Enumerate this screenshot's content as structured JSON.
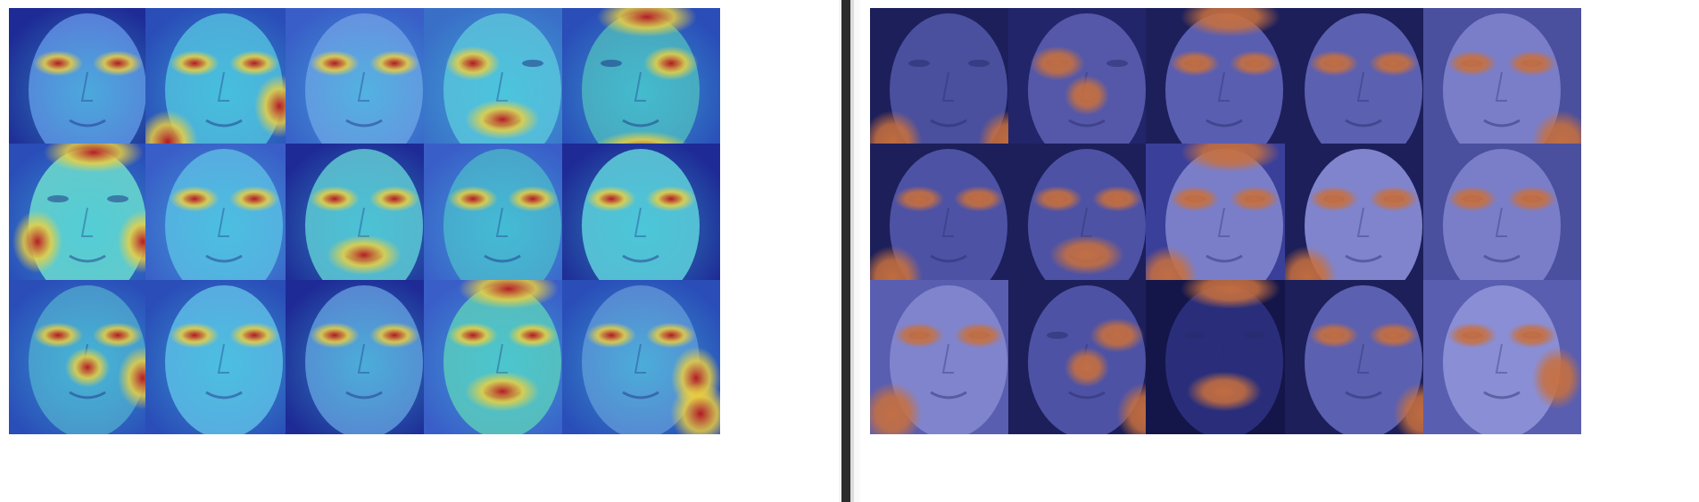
{
  "panels": [
    {
      "id": "left",
      "style": "jet-heatmap",
      "colors": {
        "low": "#2a3fb8",
        "mid": "#3fd2e0",
        "high": "#b8141e",
        "warm": "#f2d23a"
      },
      "tiles": [
        {
          "skin": "#5a78d8",
          "hair": "#1e2a96",
          "hot": [
            "eyes"
          ]
        },
        {
          "skin": "#4fa8d8",
          "hair": "#2a4db8",
          "hot": [
            "eyes",
            "chin-left",
            "cheek-right"
          ]
        },
        {
          "skin": "#6a8ce0",
          "hair": "#3a5ec8",
          "hot": [
            "eyes"
          ]
        },
        {
          "skin": "#5ab4d8",
          "hair": "#3a6fc8",
          "hot": [
            "mouth",
            "eye-left"
          ]
        },
        {
          "skin": "#4aa0b8",
          "hair": "#2a4db8",
          "hot": [
            "eye-right",
            "forehead",
            "chin"
          ]
        },
        {
          "skin": "#6ac8c8",
          "hair": "#2a4db8",
          "hot": [
            "cheek-left",
            "cheek-right",
            "forehead"
          ]
        },
        {
          "skin": "#5aa8e0",
          "hair": "#3a5ec8",
          "hot": [
            "eyes"
          ]
        },
        {
          "skin": "#5ab0c8",
          "hair": "#1e2a96",
          "hot": [
            "eyes",
            "mouth"
          ]
        },
        {
          "skin": "#4aa0c8",
          "hair": "#3a5ec8",
          "hot": [
            "eyes"
          ]
        },
        {
          "skin": "#5ab8d0",
          "hair": "#1e2a96",
          "hot": [
            "eyes"
          ]
        },
        {
          "skin": "#4a90c8",
          "hair": "#2a4db8",
          "hot": [
            "eyes",
            "nose",
            "cheek-right"
          ]
        },
        {
          "skin": "#5aa8e0",
          "hair": "#2a4db8",
          "hot": [
            "eyes"
          ]
        },
        {
          "skin": "#5a80d0",
          "hair": "#1e2a96",
          "hot": [
            "eyes"
          ]
        },
        {
          "skin": "#5ab8b8",
          "hair": "#3a5ec8",
          "hot": [
            "eyes",
            "mouth",
            "forehead"
          ]
        },
        {
          "skin": "#5a80d0",
          "hair": "#2a4db8",
          "hot": [
            "eyes",
            "cheek-right",
            "chin-right"
          ]
        }
      ]
    },
    {
      "id": "right",
      "style": "blue-overlay",
      "colors": {
        "low": "#3a3f9a",
        "hot": "#c8703e"
      },
      "tiles": [
        {
          "skin": "#4a4f9e",
          "hair": "#1c1f5a",
          "hot": [
            "chin-right",
            "chin-left"
          ]
        },
        {
          "skin": "#5558a8",
          "hair": "#22256a",
          "hot": [
            "eye-left",
            "nose"
          ]
        },
        {
          "skin": "#5a5eb0",
          "hair": "#1c1f5a",
          "hot": [
            "eyes",
            "forehead"
          ]
        },
        {
          "skin": "#5c60b0",
          "hair": "#1c1f5a",
          "hot": [
            "eyes"
          ]
        },
        {
          "skin": "#7a7ec8",
          "hair": "#4a4f9e",
          "hot": [
            "eyes",
            "chin-right"
          ]
        },
        {
          "skin": "#4e52a4",
          "hair": "#1c1f5a",
          "hot": [
            "eyes",
            "chin-left"
          ]
        },
        {
          "skin": "#4e52a4",
          "hair": "#1c1f5a",
          "hot": [
            "mouth",
            "eyes"
          ]
        },
        {
          "skin": "#7a7ec8",
          "hair": "#3a3f9a",
          "hot": [
            "eyes",
            "forehead",
            "chin-left"
          ]
        },
        {
          "skin": "#8084cc",
          "hair": "#1c1f5a",
          "hot": [
            "eyes",
            "chin-left"
          ]
        },
        {
          "skin": "#7a7ec8",
          "hair": "#4a4f9e",
          "hot": [
            "eyes"
          ]
        },
        {
          "skin": "#8084cc",
          "hair": "#5a5eb0",
          "hot": [
            "eyes",
            "chin-left"
          ]
        },
        {
          "skin": "#4e52a4",
          "hair": "#1c1f5a",
          "hot": [
            "nose",
            "eye-right",
            "chin-right"
          ]
        },
        {
          "skin": "#2a2e7a",
          "hair": "#14164a",
          "hot": [
            "mouth",
            "forehead"
          ]
        },
        {
          "skin": "#5c60b0",
          "hair": "#1c1f5a",
          "hot": [
            "eyes",
            "chin-right"
          ]
        },
        {
          "skin": "#8a8ed4",
          "hair": "#5a5eb0",
          "hot": [
            "eyes",
            "cheek-right"
          ]
        }
      ]
    }
  ]
}
